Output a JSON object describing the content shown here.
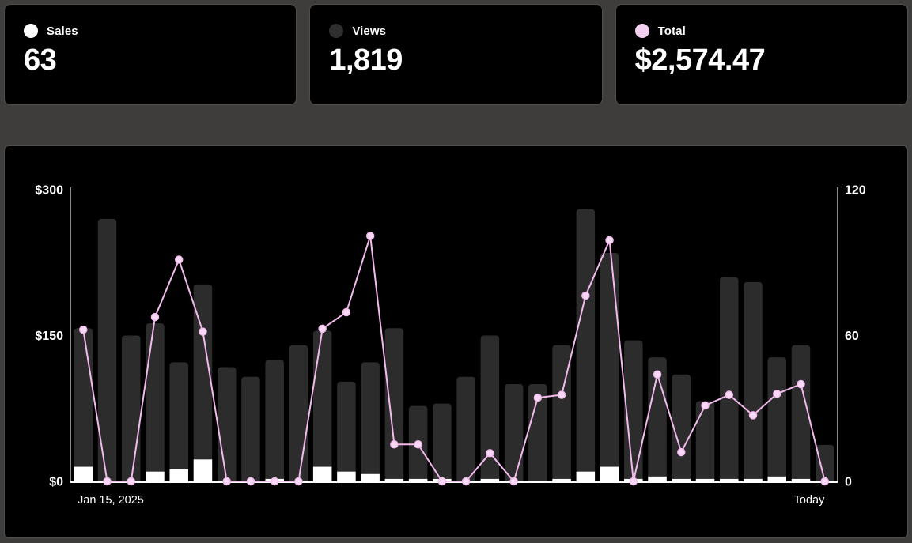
{
  "cards": [
    {
      "label": "Sales",
      "value": "63",
      "dot_color": "#ffffff"
    },
    {
      "label": "Views",
      "value": "1,819",
      "dot_color": "#2f2f2f"
    },
    {
      "label": "Total",
      "value": "$2,574.47",
      "dot_color": "#f3cff1"
    }
  ],
  "chart_data": {
    "type": "bar",
    "left_axis": {
      "ticks": [
        "$300",
        "$150",
        "$0"
      ],
      "tick_values": [
        300,
        150,
        0
      ],
      "range": [
        0,
        300
      ]
    },
    "right_axis": {
      "ticks": [
        "120",
        "60",
        "0"
      ],
      "tick_values": [
        120,
        60,
        0
      ],
      "range": [
        0,
        120
      ]
    },
    "x_labels": {
      "start": "Jan 15, 2025",
      "end": "Today"
    },
    "legend_position": "none",
    "grid": false,
    "series": [
      {
        "name": "Views",
        "type": "bar",
        "axis": "right",
        "color": "#2c2c2c",
        "values": [
          63,
          108,
          60,
          65,
          49,
          81,
          47,
          43,
          50,
          56,
          62,
          41,
          49,
          63,
          31,
          32,
          43,
          60,
          40,
          40,
          56,
          112,
          94,
          58,
          51,
          44,
          33,
          84,
          82,
          51,
          56,
          15
        ]
      },
      {
        "name": "Sales",
        "type": "bar",
        "axis": "right",
        "color": "#ffffff",
        "values": [
          6,
          0,
          0,
          4,
          5,
          9,
          0,
          0,
          1,
          0,
          6,
          4,
          3,
          1,
          1,
          1,
          0,
          1,
          0,
          0,
          1,
          4,
          6,
          1,
          2,
          1,
          1,
          1,
          1,
          2,
          1,
          0
        ]
      },
      {
        "name": "Total",
        "type": "line",
        "axis": "left",
        "color": "#f3bbed",
        "dot_fill": "#f9daf6",
        "values": [
          155.99,
          0,
          0,
          169,
          228,
          154,
          0,
          0,
          0,
          0,
          157,
          174,
          252.48,
          38,
          38,
          0,
          0,
          29,
          0,
          86,
          89,
          191,
          248,
          0,
          110,
          30,
          78,
          89,
          68,
          90,
          100,
          0
        ]
      }
    ]
  },
  "colors": {
    "page_bg": "#3e3d3b",
    "panel_bg": "#000000",
    "panel_border": "#504e4c",
    "axis_line": "#b9b9b9",
    "baseline": "#ffffff",
    "tick_text": "#ffffff"
  }
}
